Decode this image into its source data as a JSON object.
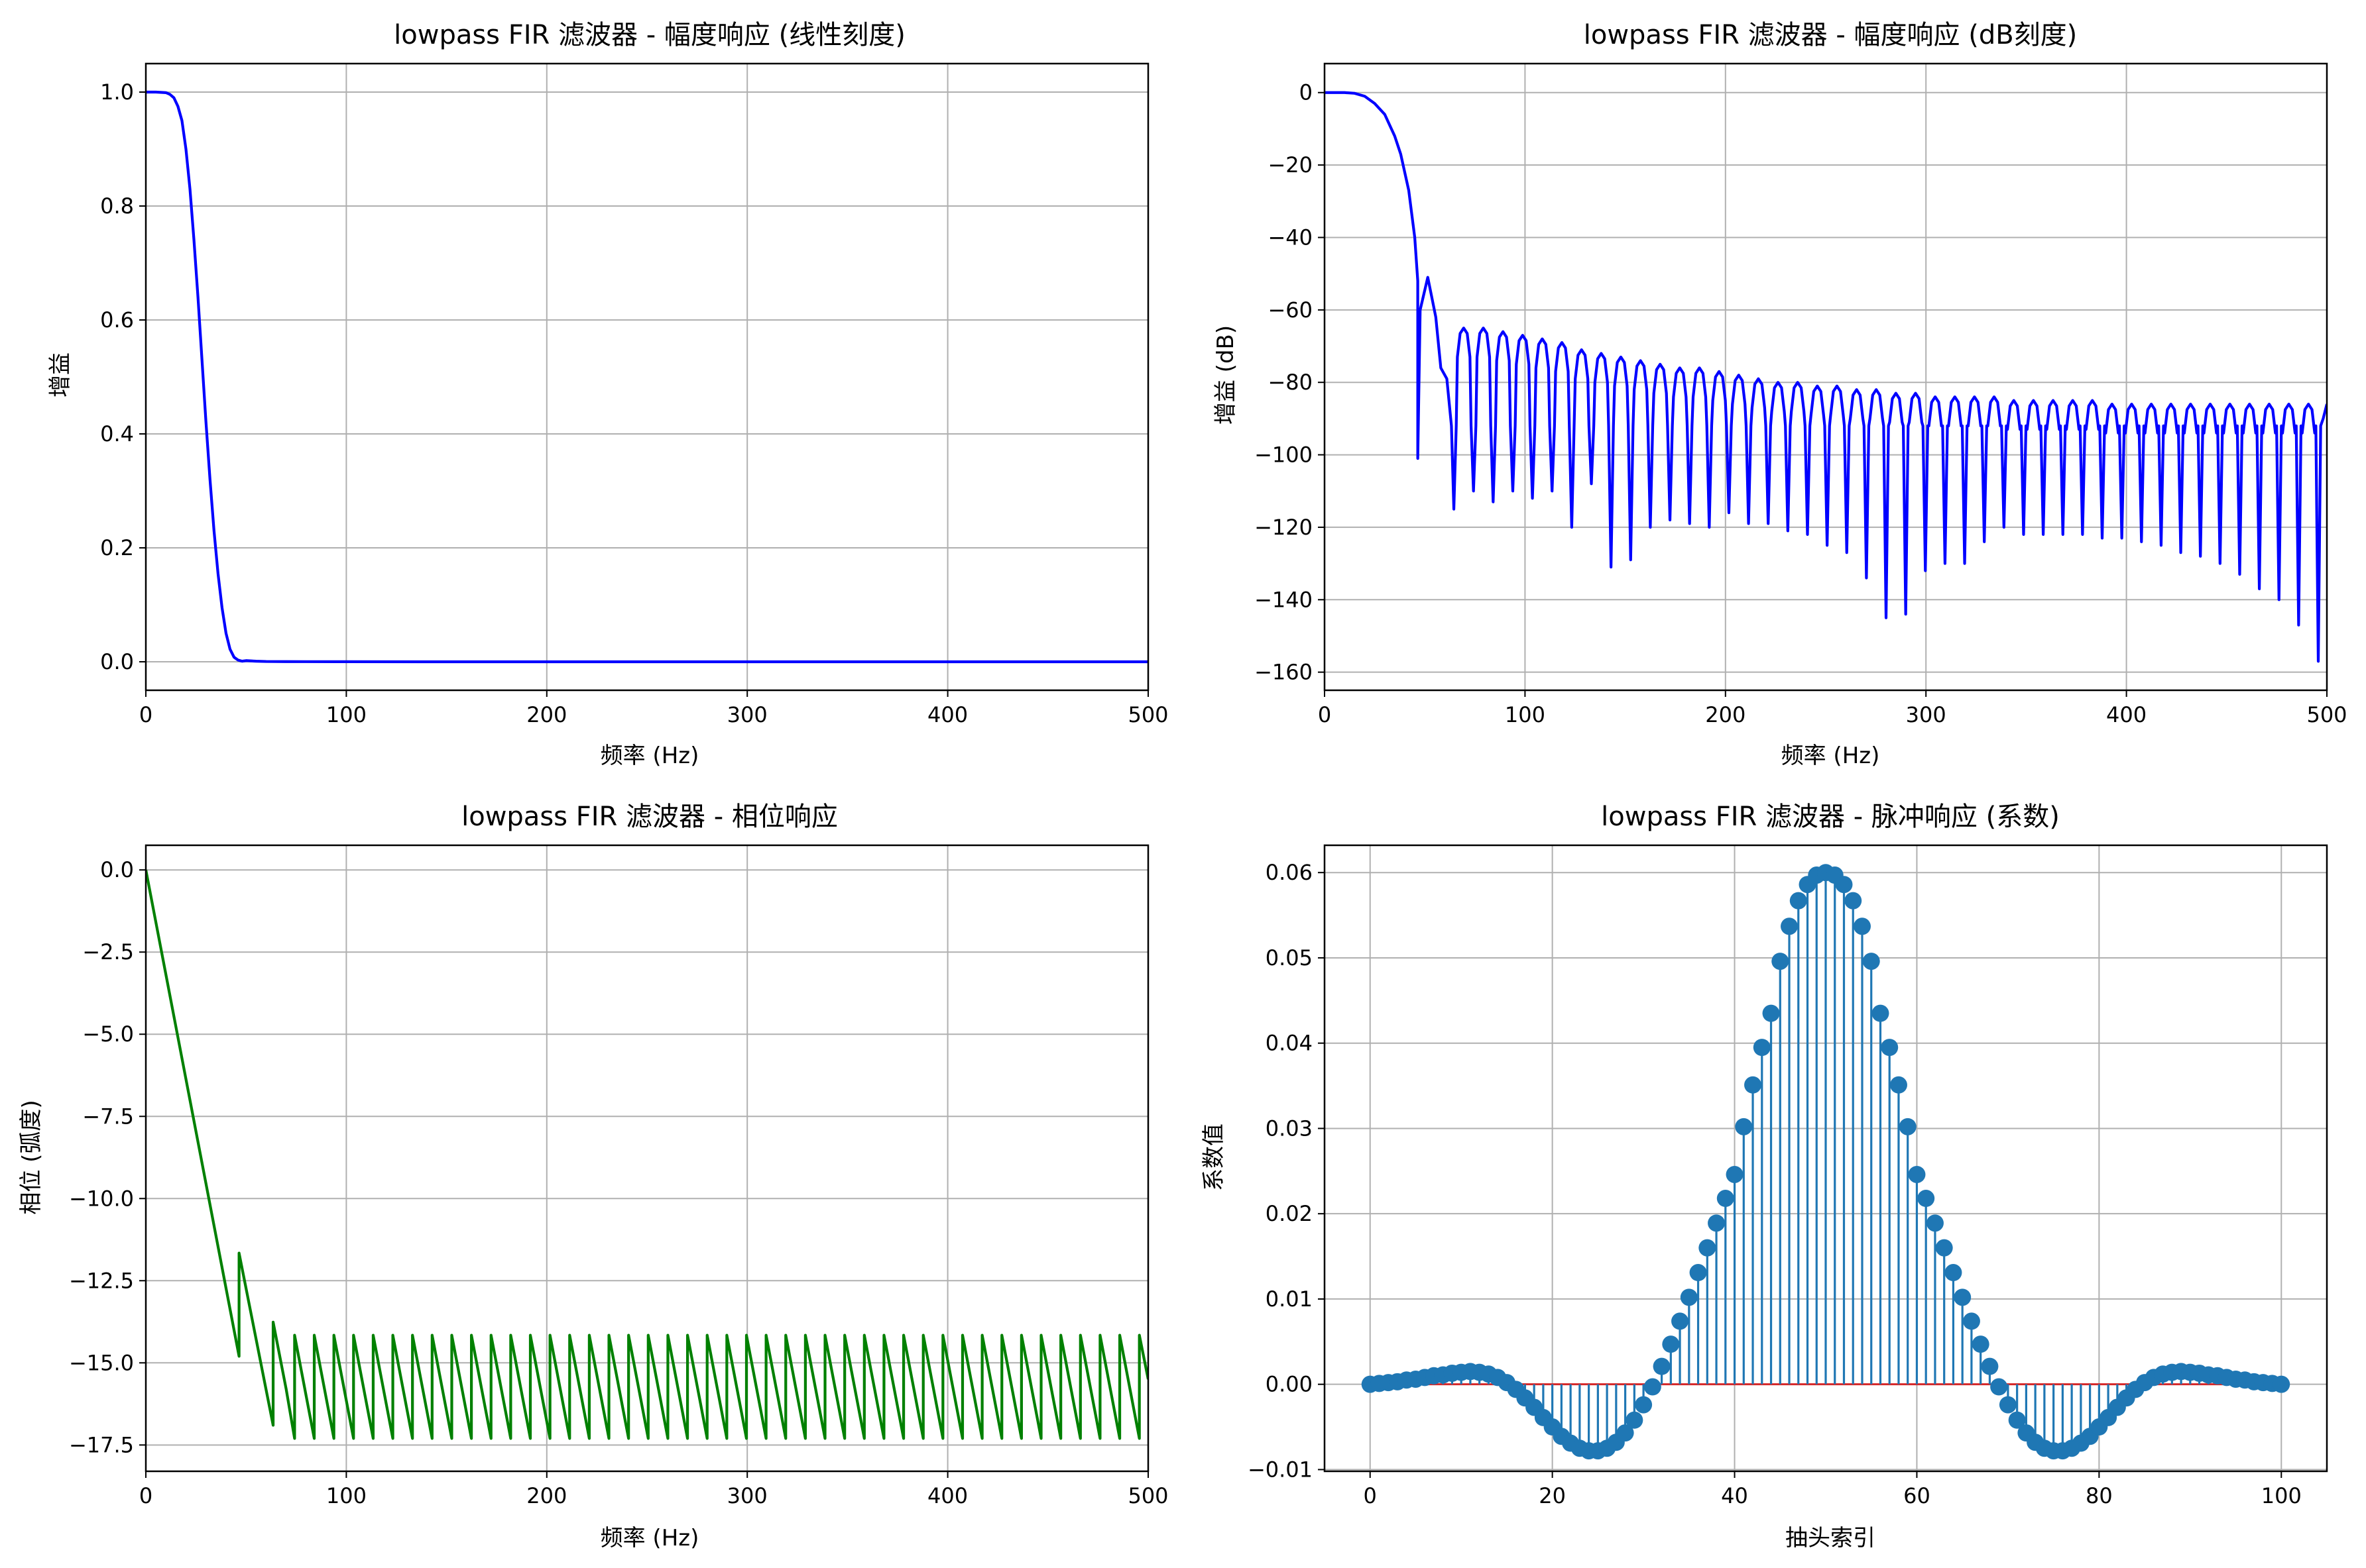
{
  "figure": {
    "background": "#ffffff",
    "grid_color": "#b0b0b0"
  },
  "chart_data": [
    {
      "id": "linear",
      "type": "line",
      "title": "lowpass FIR 滤波器 - 幅度响应 (线性刻度)",
      "xlabel": "频率 (Hz)",
      "ylabel": "增益",
      "xlim": [
        0,
        500
      ],
      "ylim": [
        -0.05,
        1.05
      ],
      "xticks": [
        0,
        100,
        200,
        300,
        400,
        500
      ],
      "xtick_labels": [
        "0",
        "100",
        "200",
        "300",
        "400",
        "500"
      ],
      "yticks": [
        0.0,
        0.2,
        0.4,
        0.6,
        0.8,
        1.0
      ],
      "ytick_labels": [
        "0.0",
        "0.2",
        "0.4",
        "0.6",
        "0.8",
        "1.0"
      ],
      "grid": true,
      "series": [
        {
          "color": "#0000ff",
          "x": [
            0,
            5,
            10,
            12,
            14,
            16,
            18,
            20,
            22,
            24,
            26,
            28,
            30,
            32,
            34,
            36,
            38,
            40,
            42,
            44,
            46,
            48,
            50,
            55,
            60,
            70,
            80,
            100,
            150,
            200,
            300,
            400,
            500
          ],
          "y": [
            1.0,
            1.0,
            0.999,
            0.996,
            0.99,
            0.975,
            0.95,
            0.9,
            0.83,
            0.74,
            0.64,
            0.53,
            0.42,
            0.32,
            0.23,
            0.155,
            0.095,
            0.05,
            0.022,
            0.008,
            0.003,
            0.001,
            0.002,
            0.001,
            0.0005,
            0.0003,
            0.0002,
            0.0001,
            0.0,
            0.0,
            0.0,
            0.0,
            0.0
          ]
        }
      ]
    },
    {
      "id": "db",
      "type": "line",
      "title": "lowpass FIR 滤波器 - 幅度响应 (dB刻度)",
      "xlabel": "频率 (Hz)",
      "ylabel": "增益 (dB)",
      "xlim": [
        0,
        500
      ],
      "ylim": [
        -165,
        8
      ],
      "xticks": [
        0,
        100,
        200,
        300,
        400,
        500
      ],
      "xtick_labels": [
        "0",
        "100",
        "200",
        "300",
        "400",
        "500"
      ],
      "yticks": [
        0,
        -20,
        -40,
        -60,
        -80,
        -100,
        -120,
        -140,
        -160
      ],
      "ytick_labels": [
        "0",
        "−20",
        "−40",
        "−60",
        "−80",
        "−100",
        "−120",
        "−140",
        "−160"
      ],
      "grid": true,
      "passband": {
        "x": [
          0,
          10,
          15,
          20,
          25,
          30,
          35,
          38,
          42,
          45,
          46.5
        ],
        "y": [
          0,
          0,
          -0.2,
          -1.0,
          -3.0,
          -6.0,
          -12.0,
          -17.0,
          -27.0,
          -40.0,
          -52.0
        ]
      },
      "first_null": {
        "x": 46.5,
        "y": -101
      },
      "first_sidelobe": {
        "x": 51.5,
        "y": -51
      },
      "shoulder": {
        "x": 61,
        "y": -79
      },
      "null_spacing_hz": 9.8,
      "null_depths": [
        -115,
        -110,
        -113,
        -110,
        -112,
        -110,
        -120,
        -108,
        -131,
        -129,
        -120,
        -118,
        -119,
        -120,
        -116,
        -119,
        -119,
        -121,
        -122,
        -125,
        -127,
        -134,
        -145,
        -144,
        -132,
        -130,
        -130,
        -124,
        -120,
        -122,
        -122,
        -122,
        -122,
        -123,
        -123,
        -124,
        -125,
        -127,
        -128,
        -130,
        -133,
        -137,
        -140,
        -147,
        -157
      ],
      "sidelobe_peaks": [
        -65,
        -65,
        -66,
        -67,
        -68,
        -69,
        -71,
        -72,
        -73,
        -74,
        -75,
        -76,
        -76,
        -77,
        -78,
        -79,
        -80,
        -80,
        -81,
        -81,
        -82,
        -82,
        -83,
        -83,
        -84,
        -84,
        -84,
        -84,
        -85,
        -85,
        -85,
        -85,
        -85,
        -86,
        -86,
        -86,
        -86,
        -86,
        -86,
        -86,
        -86,
        -86,
        -86,
        -86
      ],
      "series": [
        {
          "color": "#0000ff"
        }
      ]
    },
    {
      "id": "phase",
      "type": "line",
      "title": "lowpass FIR 滤波器 - 相位响应",
      "xlabel": "频率 (Hz)",
      "ylabel": "相位 (弧度)",
      "xlim": [
        0,
        500
      ],
      "ylim": [
        -18.3,
        0.75
      ],
      "xticks": [
        0,
        100,
        200,
        300,
        400,
        500
      ],
      "xtick_labels": [
        "0",
        "100",
        "200",
        "300",
        "400",
        "500"
      ],
      "yticks": [
        0.0,
        -2.5,
        -5.0,
        -7.5,
        -10.0,
        -12.5,
        -15.0,
        -17.5
      ],
      "ytick_labels": [
        "0.0",
        "−2.5",
        "−5.0",
        "−7.5",
        "−10.0",
        "−12.5",
        "−15.0",
        "−17.5"
      ],
      "grid": true,
      "x": [
        0,
        46.5,
        46.5,
        63.5,
        63.5,
        70.0,
        74.2,
        74.2,
        84.0,
        84.0,
        93.8,
        93.8,
        103.6,
        103.6,
        113.4,
        113.4,
        123.2,
        123.2,
        133.0,
        133.0,
        142.8,
        142.8,
        152.6,
        152.6,
        162.4,
        162.4,
        172.2,
        172.2,
        182.0,
        182.0,
        191.8,
        191.8,
        201.6,
        201.6,
        211.4,
        211.4,
        221.2,
        221.2,
        231.0,
        231.0,
        240.8,
        240.8,
        250.6,
        250.6,
        260.4,
        260.4,
        270.2,
        270.2,
        280.0,
        280.0,
        289.8,
        289.8,
        299.6,
        299.6,
        309.4,
        309.4,
        319.2,
        319.2,
        329.0,
        329.0,
        338.8,
        338.8,
        348.6,
        348.6,
        358.4,
        358.4,
        368.2,
        368.2,
        378.0,
        378.0,
        387.8,
        387.8,
        397.6,
        397.6,
        407.4,
        407.4,
        417.2,
        417.2,
        427.0,
        427.0,
        436.8,
        436.8,
        446.6,
        446.6,
        456.4,
        456.4,
        466.2,
        466.2,
        476.0,
        476.0,
        485.8,
        485.8,
        495.6,
        495.6,
        500
      ],
      "y": [
        0,
        -14.8,
        -11.66,
        -16.9,
        -13.76,
        -15.8,
        -17.3,
        -14.16,
        -17.3,
        -14.16,
        -17.3,
        -14.16,
        -17.3,
        -14.16,
        -17.3,
        -14.16,
        -17.3,
        -14.16,
        -17.3,
        -14.16,
        -17.3,
        -14.16,
        -17.3,
        -14.16,
        -17.3,
        -14.16,
        -17.3,
        -14.16,
        -17.3,
        -14.16,
        -17.3,
        -14.16,
        -17.3,
        -14.16,
        -17.3,
        -14.16,
        -17.3,
        -14.16,
        -17.3,
        -14.16,
        -17.3,
        -14.16,
        -17.3,
        -14.16,
        -17.3,
        -14.16,
        -17.3,
        -14.16,
        -17.3,
        -14.16,
        -17.3,
        -14.16,
        -17.3,
        -14.16,
        -17.3,
        -14.16,
        -17.3,
        -14.16,
        -17.3,
        -14.16,
        -17.3,
        -14.16,
        -17.3,
        -14.16,
        -17.3,
        -14.16,
        -17.3,
        -14.16,
        -17.3,
        -14.16,
        -17.3,
        -14.16,
        -17.3,
        -14.16,
        -17.3,
        -14.16,
        -17.3,
        -14.16,
        -17.3,
        -14.16,
        -17.3,
        -14.16,
        -17.3,
        -14.16,
        -17.3,
        -14.16,
        -17.3,
        -14.16,
        -17.3,
        -14.16,
        -17.3,
        -14.16,
        -17.3,
        -14.16,
        -15.5
      ],
      "series": [
        {
          "color": "#008000"
        }
      ]
    },
    {
      "id": "impulse",
      "type": "stem",
      "title": "lowpass FIR 滤波器 - 脉冲响应 (系数)",
      "xlabel": "抽头索引",
      "ylabel": "系数值",
      "xlim": [
        -5,
        105
      ],
      "ylim": [
        -0.0102,
        0.0632
      ],
      "xticks": [
        0,
        20,
        40,
        60,
        80,
        100
      ],
      "xtick_labels": [
        "0",
        "20",
        "40",
        "60",
        "80",
        "100"
      ],
      "yticks": [
        -0.01,
        0.0,
        0.01,
        0.02,
        0.03,
        0.04,
        0.05,
        0.06
      ],
      "ytick_labels": [
        "−0.01",
        "0.00",
        "0.01",
        "0.02",
        "0.03",
        "0.04",
        "0.05",
        "0.06"
      ],
      "grid": true,
      "series": [
        {
          "color": "#1f77b4"
        }
      ],
      "x": [
        0,
        1,
        2,
        3,
        4,
        5,
        6,
        7,
        8,
        9,
        10,
        11,
        12,
        13,
        14,
        15,
        16,
        17,
        18,
        19,
        20,
        21,
        22,
        23,
        24,
        25,
        26,
        27,
        28,
        29,
        30,
        31,
        32,
        33,
        34,
        35,
        36,
        37,
        38,
        39,
        40,
        41,
        42,
        43,
        44,
        45,
        46,
        47,
        48,
        49,
        50,
        51,
        52,
        53,
        54,
        55,
        56,
        57,
        58,
        59,
        60,
        61,
        62,
        63,
        64,
        65,
        66,
        67,
        68,
        69,
        70,
        71,
        72,
        73,
        74,
        75,
        76,
        77,
        78,
        79,
        80,
        81,
        82,
        83,
        84,
        85,
        86,
        87,
        88,
        89,
        90,
        91,
        92,
        93,
        94,
        95,
        96,
        97,
        98,
        99,
        100
      ],
      "y": [
        0.0,
        0.0001,
        0.0002,
        0.0003,
        0.0005,
        0.0006,
        0.0008,
        0.001,
        0.0011,
        0.0013,
        0.0014,
        0.0015,
        0.0014,
        0.0012,
        0.0008,
        0.0002,
        -0.0006,
        -0.0016,
        -0.0027,
        -0.0039,
        -0.005,
        -0.0061,
        -0.0069,
        -0.0075,
        -0.0078,
        -0.0078,
        -0.0075,
        -0.0068,
        -0.0057,
        -0.0042,
        -0.0024,
        -0.0003,
        0.0021,
        0.0047,
        0.0074,
        0.0102,
        0.0131,
        0.016,
        0.0189,
        0.0218,
        0.0246,
        0.0302,
        0.0351,
        0.0395,
        0.0435,
        0.0496,
        0.0537,
        0.0567,
        0.0586,
        0.0597,
        0.06,
        0.0597,
        0.0586,
        0.0567,
        0.0537,
        0.0496,
        0.0435,
        0.0395,
        0.0351,
        0.0302,
        0.0246,
        0.0218,
        0.0189,
        0.016,
        0.0131,
        0.0102,
        0.0074,
        0.0047,
        0.0021,
        -0.0003,
        -0.0024,
        -0.0042,
        -0.0057,
        -0.0068,
        -0.0075,
        -0.0078,
        -0.0078,
        -0.0075,
        -0.0069,
        -0.0061,
        -0.005,
        -0.0039,
        -0.0027,
        -0.0016,
        -0.0006,
        0.0002,
        0.0008,
        0.0012,
        0.0014,
        0.0015,
        0.0014,
        0.0013,
        0.0011,
        0.001,
        0.0008,
        0.0006,
        0.0005,
        0.0003,
        0.0002,
        0.0001,
        0.0
      ]
    }
  ]
}
